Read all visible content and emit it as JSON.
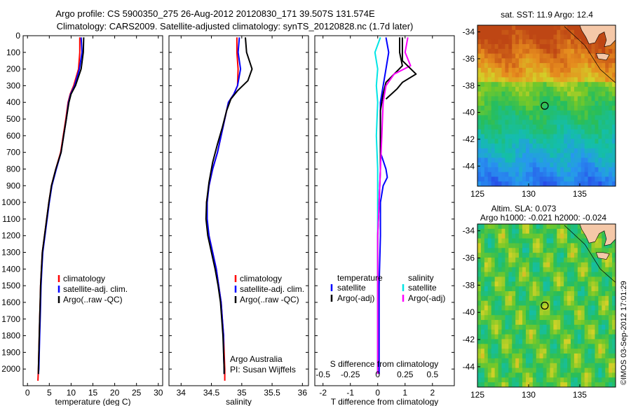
{
  "header": {
    "line1": "Argo profile: CS 5900350_275 26-Aug-2012 20120830_171 39.507S 131.574E",
    "line2": "Climatology: CARS2009. Satellite-adjusted climatology: synTS_20120828.nc (1.7d later)"
  },
  "colors": {
    "climatology": "#ff0000",
    "satellite": "#0000ff",
    "argo": "#000000",
    "sal_satellite": "#00e5e5",
    "sal_argo": "#ff00ff",
    "land": "#f5c8a8"
  },
  "chart_data": [
    {
      "type": "line",
      "name": "temperature-profile",
      "xlabel": "temperature (deg C)",
      "xlim": [
        -1,
        31
      ],
      "ylim": [
        2100,
        0
      ],
      "xticks": [
        0,
        5,
        10,
        15,
        20,
        25,
        30
      ],
      "yticks": [
        0,
        100,
        200,
        300,
        400,
        500,
        600,
        700,
        800,
        900,
        1000,
        1100,
        1200,
        1300,
        1400,
        1500,
        1600,
        1700,
        1800,
        1900,
        2000
      ],
      "legend": [
        "climatology",
        "satellite-adj. clim.",
        "Argo(..raw -QC)"
      ],
      "series": [
        {
          "name": "climatology",
          "color": "#ff0000",
          "points": [
            [
              12.0,
              10
            ],
            [
              12.0,
              100
            ],
            [
              11.7,
              200
            ],
            [
              10.6,
              300
            ],
            [
              9.8,
              350
            ],
            [
              9.3,
              400
            ],
            [
              8.8,
              500
            ],
            [
              8.2,
              600
            ],
            [
              7.6,
              700
            ],
            [
              6.5,
              800
            ],
            [
              5.5,
              900
            ],
            [
              4.9,
              1000
            ],
            [
              4.4,
              1100
            ],
            [
              3.9,
              1200
            ],
            [
              3.4,
              1300
            ],
            [
              3.2,
              1400
            ],
            [
              3.0,
              1500
            ],
            [
              2.9,
              1600
            ],
            [
              2.8,
              1700
            ],
            [
              2.7,
              1800
            ],
            [
              2.6,
              1900
            ],
            [
              2.5,
              2000
            ],
            [
              2.4,
              2070
            ]
          ]
        },
        {
          "name": "satellite-adj. clim.",
          "color": "#0000ff",
          "points": [
            [
              12.3,
              10
            ],
            [
              12.5,
              100
            ],
            [
              11.9,
              200
            ],
            [
              10.8,
              300
            ],
            [
              9.9,
              350
            ],
            [
              9.4,
              400
            ],
            [
              8.9,
              500
            ],
            [
              8.3,
              600
            ],
            [
              7.7,
              700
            ],
            [
              6.6,
              800
            ],
            [
              5.6,
              900
            ],
            [
              5.0,
              1000
            ],
            [
              4.5,
              1100
            ],
            [
              4.0,
              1200
            ],
            [
              3.5,
              1300
            ],
            [
              3.3,
              1400
            ],
            [
              3.1,
              1500
            ],
            [
              3.0,
              1600
            ],
            [
              2.9,
              1700
            ],
            [
              2.8,
              1800
            ],
            [
              2.7,
              1900
            ],
            [
              2.6,
              2000
            ],
            [
              2.5,
              2030
            ]
          ]
        },
        {
          "name": "Argo(..raw -QC)",
          "color": "#000000",
          "points": [
            [
              12.9,
              10
            ],
            [
              12.8,
              100
            ],
            [
              12.3,
              200
            ],
            [
              11.0,
              300
            ],
            [
              10.0,
              350
            ],
            [
              9.5,
              400
            ],
            [
              8.9,
              500
            ],
            [
              8.3,
              600
            ],
            [
              7.7,
              700
            ],
            [
              6.5,
              800
            ],
            [
              5.5,
              900
            ],
            [
              4.9,
              1000
            ],
            [
              4.4,
              1100
            ],
            [
              3.9,
              1200
            ],
            [
              3.4,
              1300
            ],
            [
              3.2,
              1400
            ],
            [
              3.0,
              1500
            ],
            [
              2.9,
              1600
            ],
            [
              2.8,
              1700
            ],
            [
              2.7,
              1800
            ],
            [
              2.6,
              1900
            ],
            [
              2.5,
              2000
            ],
            [
              2.5,
              2030
            ]
          ]
        }
      ]
    },
    {
      "type": "line",
      "name": "salinity-profile",
      "xlabel": "salinity",
      "xlim": [
        33.8,
        36.1
      ],
      "ylim": [
        2100,
        0
      ],
      "xticks": [
        34,
        34.5,
        35,
        35.5,
        36
      ],
      "legend": [
        "climatology",
        "satellite-adj. clim.",
        "Argo(..raw -QC)"
      ],
      "annotation": [
        "Argo Australia",
        "PI: Susan Wijffels"
      ],
      "series": [
        {
          "name": "climatology",
          "color": "#ff0000",
          "points": [
            [
              34.92,
              10
            ],
            [
              34.92,
              100
            ],
            [
              34.94,
              200
            ],
            [
              34.93,
              300
            ],
            [
              34.87,
              350
            ],
            [
              34.78,
              400
            ],
            [
              34.72,
              500
            ],
            [
              34.66,
              600
            ],
            [
              34.6,
              700
            ],
            [
              34.52,
              800
            ],
            [
              34.46,
              900
            ],
            [
              34.42,
              1000
            ],
            [
              34.42,
              1100
            ],
            [
              34.46,
              1200
            ],
            [
              34.52,
              1300
            ],
            [
              34.58,
              1400
            ],
            [
              34.62,
              1500
            ],
            [
              34.66,
              1600
            ],
            [
              34.68,
              1700
            ],
            [
              34.7,
              1800
            ],
            [
              34.71,
              1900
            ],
            [
              34.72,
              2000
            ],
            [
              34.72,
              2070
            ]
          ]
        },
        {
          "name": "satellite-adj. clim.",
          "color": "#0000ff",
          "points": [
            [
              34.96,
              10
            ],
            [
              34.94,
              100
            ],
            [
              34.98,
              200
            ],
            [
              34.93,
              300
            ],
            [
              34.87,
              350
            ],
            [
              34.78,
              400
            ],
            [
              34.72,
              500
            ],
            [
              34.66,
              600
            ],
            [
              34.6,
              700
            ],
            [
              34.52,
              800
            ],
            [
              34.46,
              900
            ],
            [
              34.43,
              1000
            ],
            [
              34.43,
              1100
            ],
            [
              34.46,
              1200
            ],
            [
              34.52,
              1300
            ],
            [
              34.58,
              1400
            ],
            [
              34.62,
              1500
            ],
            [
              34.66,
              1600
            ],
            [
              34.68,
              1700
            ],
            [
              34.7,
              1800
            ],
            [
              34.7,
              1900
            ],
            [
              34.71,
              2000
            ],
            [
              34.71,
              2030
            ]
          ]
        },
        {
          "name": "Argo(..raw -QC)",
          "color": "#000000",
          "points": [
            [
              35.06,
              10
            ],
            [
              35.08,
              100
            ],
            [
              35.17,
              200
            ],
            [
              35.1,
              270
            ],
            [
              34.93,
              330
            ],
            [
              34.82,
              380
            ],
            [
              34.75,
              450
            ],
            [
              34.68,
              550
            ],
            [
              34.6,
              650
            ],
            [
              34.52,
              760
            ],
            [
              34.46,
              880
            ],
            [
              34.42,
              1000
            ],
            [
              34.41,
              1100
            ],
            [
              34.44,
              1200
            ],
            [
              34.5,
              1300
            ],
            [
              34.56,
              1400
            ],
            [
              34.61,
              1500
            ],
            [
              34.65,
              1600
            ],
            [
              34.67,
              1700
            ],
            [
              34.69,
              1800
            ],
            [
              34.7,
              1900
            ],
            [
              34.71,
              2000
            ],
            [
              34.71,
              2030
            ]
          ]
        }
      ]
    },
    {
      "type": "line",
      "name": "difference-profile",
      "xlabel": "T difference from climatology",
      "xlim": [
        -2.3,
        2.8
      ],
      "ylim": [
        2100,
        0
      ],
      "xticks": [
        -2,
        -1,
        0,
        1,
        2
      ],
      "top_xlabel": "S difference from climatology",
      "top_xticks": [
        "-0.5",
        "-0.25",
        "0",
        "0.25",
        "0.5"
      ],
      "top_xtick_positions": [
        -2,
        -1,
        0,
        1,
        2
      ],
      "legend_temperature": {
        "title": "temperature",
        "items": [
          "satellite",
          "Argo(-adj)"
        ]
      },
      "legend_salinity": {
        "title": "salinity",
        "items": [
          "satellite",
          "Argo(-adj)"
        ]
      },
      "series": [
        {
          "name": "temperature satellite",
          "color": "#0000ff",
          "points": [
            [
              0.3,
              10
            ],
            [
              0.4,
              100
            ],
            [
              0.3,
              200
            ],
            [
              0.2,
              300
            ],
            [
              0.1,
              400
            ],
            [
              0.1,
              500
            ],
            [
              0.1,
              600
            ],
            [
              0.1,
              700
            ],
            [
              0.3,
              800
            ],
            [
              0.35,
              850
            ],
            [
              0.2,
              900
            ],
            [
              0.1,
              1000
            ],
            [
              0.1,
              1200
            ],
            [
              0.05,
              1500
            ],
            [
              0.05,
              1800
            ],
            [
              0.05,
              2030
            ]
          ]
        },
        {
          "name": "temperature Argo(-adj)",
          "color": "#000000",
          "points": [
            [
              0.8,
              10
            ],
            [
              0.8,
              100
            ],
            [
              0.9,
              180
            ],
            [
              0.6,
              230
            ],
            [
              0.3,
              280
            ],
            [
              0.2,
              350
            ],
            [
              0.1,
              450
            ],
            [
              0.1,
              600
            ],
            [
              0.1,
              800
            ],
            [
              0.05,
              1000
            ],
            [
              0.0,
              1200
            ],
            [
              0.0,
              1500
            ],
            [
              0.0,
              1800
            ],
            [
              0.0,
              2030
            ]
          ]
        },
        {
          "name": "salinity satellite",
          "color": "#00e5e5",
          "points": [
            [
              0.1,
              10
            ],
            [
              -0.1,
              100
            ],
            [
              0.0,
              200
            ],
            [
              -0.05,
              300
            ],
            [
              0.0,
              400
            ],
            [
              -0.05,
              600
            ],
            [
              0.0,
              800
            ],
            [
              0.0,
              1000
            ],
            [
              0.0,
              1200
            ],
            [
              0.0,
              1500
            ],
            [
              0.0,
              1800
            ],
            [
              0.0,
              2030
            ]
          ]
        },
        {
          "name": "salinity Argo(-adj)",
          "color": "#ff00ff",
          "points": [
            [
              1.1,
              10
            ],
            [
              1.0,
              100
            ],
            [
              1.2,
              180
            ],
            [
              0.6,
              230
            ],
            [
              0.3,
              300
            ],
            [
              0.2,
              400
            ],
            [
              0.15,
              600
            ],
            [
              0.1,
              800
            ],
            [
              0.05,
              1000
            ],
            [
              0.0,
              1200
            ],
            [
              0.0,
              1500
            ],
            [
              0.0,
              1800
            ],
            [
              0.0,
              2030
            ]
          ]
        },
        {
          "name": "salinity Argo(-adj) small",
          "color": "#000000",
          "points": [
            [
              0.9,
              10
            ],
            [
              0.9,
              150
            ],
            [
              1.4,
              230
            ],
            [
              0.9,
              280
            ],
            [
              0.7,
              320
            ],
            [
              0.3,
              380
            ]
          ]
        }
      ]
    },
    {
      "type": "heatmap",
      "name": "sst-map",
      "title": "sat. SST: 11.9 Argo: 12.4",
      "xlim": [
        125,
        138.5
      ],
      "ylim": [
        -45.5,
        -33.5
      ],
      "xticks": [
        125,
        130,
        135
      ],
      "yticks": [
        -34,
        -36,
        -38,
        -40,
        -42,
        -44
      ],
      "marker": [
        131.574,
        -39.507
      ]
    },
    {
      "type": "heatmap",
      "name": "sla-map",
      "title_line1": "Altim. SLA: 0.073",
      "title_line2": "Argo h1000: -0.021 h2000: -0.024",
      "xlim": [
        125,
        138.5
      ],
      "ylim": [
        -45.5,
        -33.5
      ],
      "xticks": [
        125,
        130,
        135
      ],
      "yticks": [
        -34,
        -36,
        -38,
        -40,
        -42,
        -44
      ],
      "marker": [
        131.574,
        -39.507
      ]
    }
  ],
  "footer": {
    "credit": "©IMOS 03-Sep-2012 17:01:29"
  }
}
